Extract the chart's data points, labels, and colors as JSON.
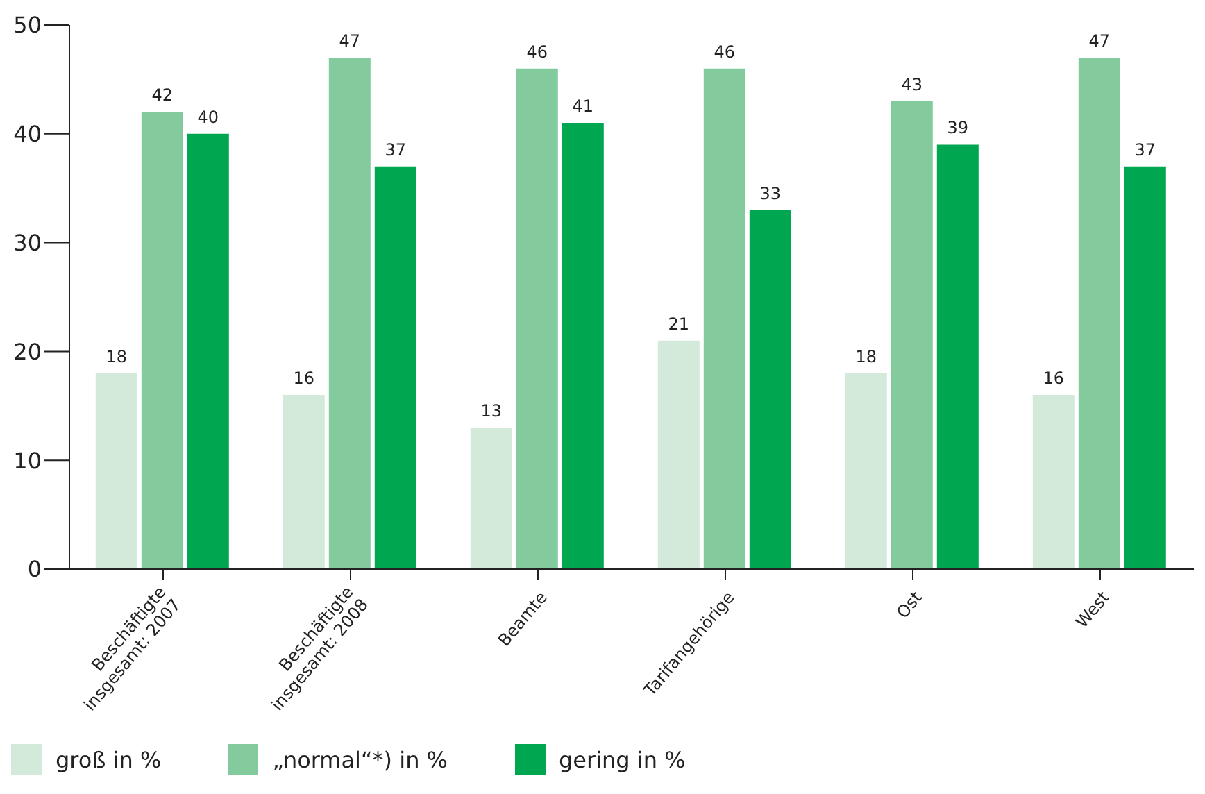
{
  "chart_data": {
    "type": "bar",
    "categories": [
      "Beschäftigte insgesamt: 2007",
      "Beschäftigte insgesamt: 2008",
      "Beamte",
      "Tarifangehörige",
      "Ost",
      "West"
    ],
    "series": [
      {
        "name": "groß in %",
        "color": "#d3eadb",
        "values": [
          18,
          16,
          13,
          21,
          18,
          16
        ]
      },
      {
        "name": "„normal“*) in %",
        "color": "#83cb9c",
        "values": [
          42,
          47,
          46,
          46,
          43,
          47
        ]
      },
      {
        "name": "gering in %",
        "color": "#00a650",
        "values": [
          40,
          37,
          41,
          33,
          39,
          37
        ]
      }
    ],
    "ylim": [
      0,
      50
    ],
    "yticks": [
      0,
      10,
      20,
      30,
      40,
      50
    ],
    "legend": "bottom left",
    "data_labels": true
  }
}
